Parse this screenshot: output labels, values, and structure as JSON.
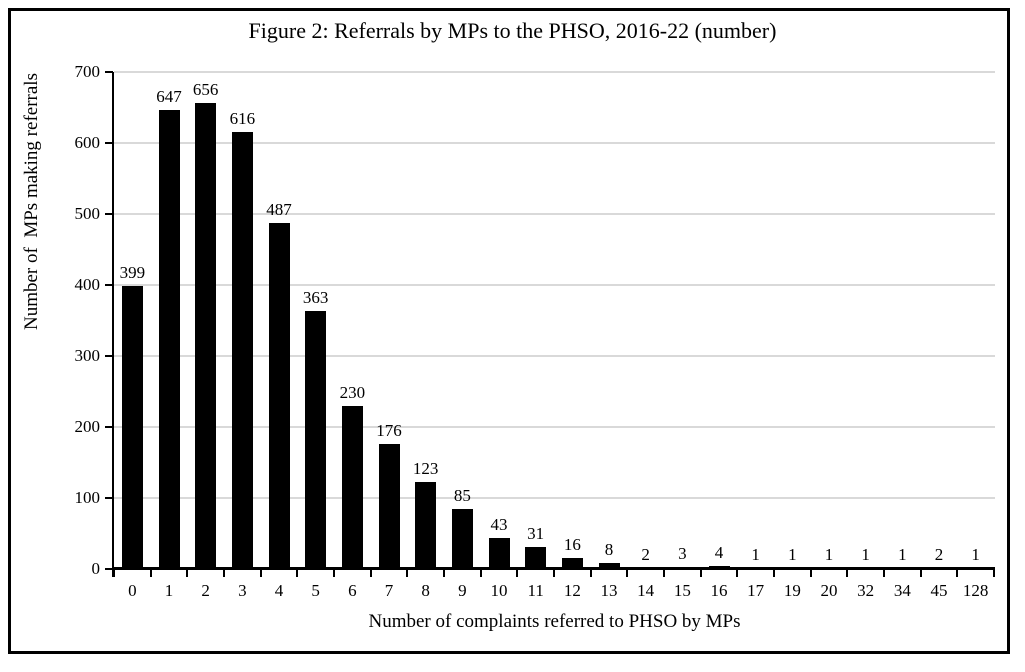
{
  "chart_data": {
    "type": "bar",
    "title": "Figure 2: Referrals by MPs to the PHSO, 2016-22 (number)",
    "xlabel": "Number of complaints referred to PHSO by MPs",
    "ylabel": "Number of  MPs making referrals",
    "categories": [
      "0",
      "1",
      "2",
      "3",
      "4",
      "5",
      "6",
      "7",
      "8",
      "9",
      "10",
      "11",
      "12",
      "13",
      "14",
      "15",
      "16",
      "17",
      "19",
      "20",
      "32",
      "34",
      "45",
      "128"
    ],
    "values": [
      399,
      647,
      656,
      616,
      487,
      363,
      230,
      176,
      123,
      85,
      43,
      31,
      16,
      8,
      2,
      3,
      4,
      1,
      1,
      1,
      1,
      1,
      2,
      1
    ],
    "ylim": [
      0,
      700
    ],
    "yticks": [
      0,
      100,
      200,
      300,
      400,
      500,
      600,
      700
    ],
    "grid": "horizontal",
    "legend": "none",
    "data_labels": true,
    "bar_color": "#000000",
    "gridline_color": "#d9d9d9",
    "axis_color": "#000000",
    "text_color": "#000000",
    "background_color": "#ffffff"
  }
}
